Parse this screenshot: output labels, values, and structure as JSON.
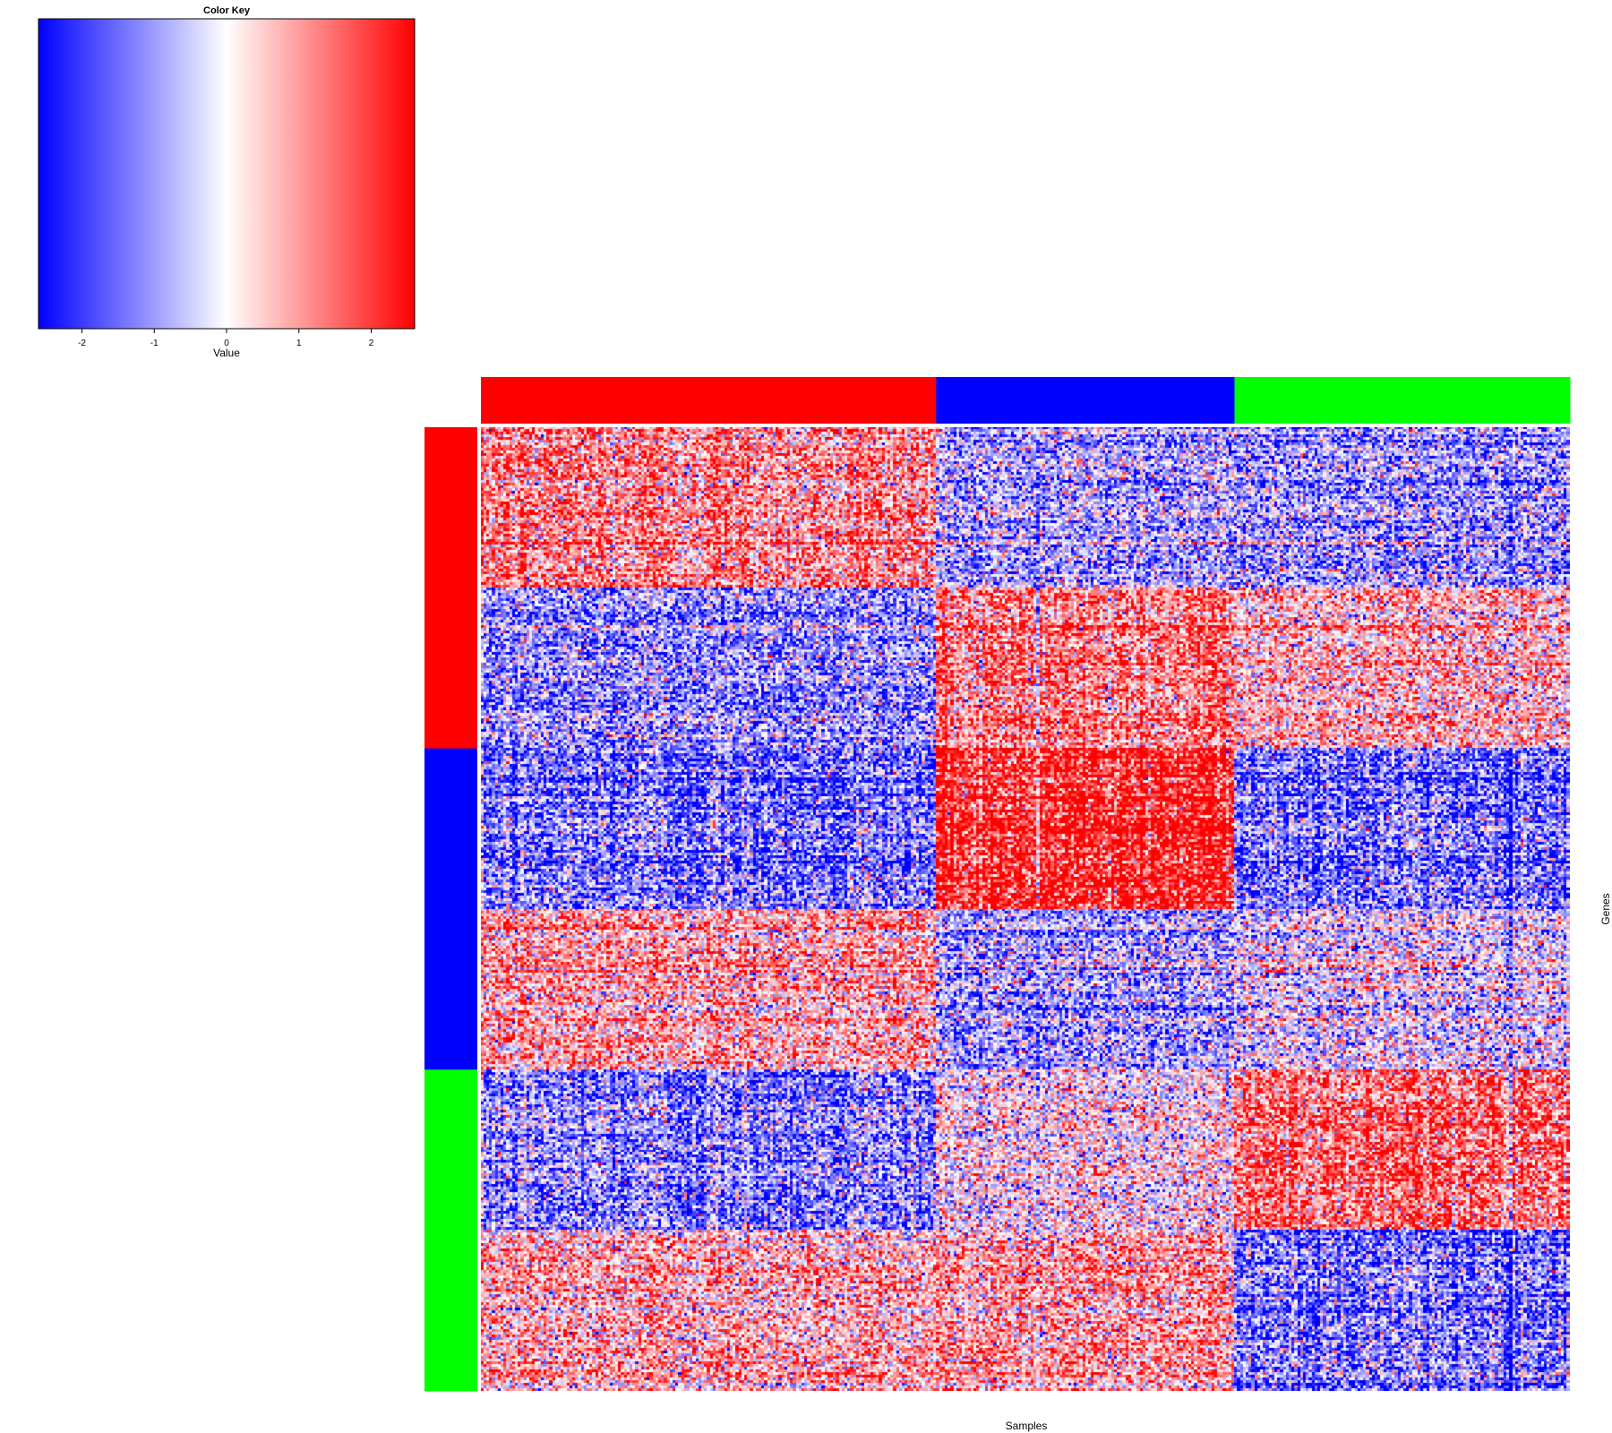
{
  "chart_data": {
    "type": "heatmap",
    "xlabel": "Samples",
    "ylabel": "Genes",
    "color_key": {
      "title": "Color Key",
      "xlabel": "Value",
      "range": [
        -2.6,
        2.6
      ],
      "ticks": [
        -2,
        -1,
        0,
        1,
        2
      ],
      "tick_labels": [
        "-2",
        "-1",
        "0",
        "1",
        "2"
      ],
      "colors": {
        "low": "#0000ff",
        "mid": "#ffffff",
        "high": "#ff0000"
      }
    },
    "column_groups": [
      {
        "color": "#ff0000",
        "fraction": 0.418
      },
      {
        "color": "#0000ff",
        "fraction": 0.274
      },
      {
        "color": "#00ff00",
        "fraction": 0.308
      }
    ],
    "row_groups": [
      {
        "color": "#ff0000",
        "fraction": 0.3333
      },
      {
        "color": "#0000ff",
        "fraction": 0.3333
      },
      {
        "color": "#00ff00",
        "fraction": 0.3334
      }
    ],
    "block_pattern": {
      "note_levels": "mean z-score per row-block (rows) x column-group (cols)",
      "row_blocks": [
        {
          "row_group": 0,
          "fraction": 0.5,
          "means": [
            1.0,
            -0.7,
            -0.8
          ]
        },
        {
          "row_group": 0,
          "fraction": 0.5,
          "means": [
            -0.9,
            1.1,
            0.6
          ]
        },
        {
          "row_group": 1,
          "fraction": 0.5,
          "means": [
            -1.1,
            2.0,
            -1.1
          ]
        },
        {
          "row_group": 1,
          "fraction": 0.5,
          "means": [
            0.7,
            -0.8,
            -0.2
          ]
        },
        {
          "row_group": 2,
          "fraction": 0.5,
          "means": [
            -1.0,
            0.1,
            1.3
          ]
        },
        {
          "row_group": 2,
          "fraction": 0.5,
          "means": [
            0.6,
            0.7,
            -1.1
          ]
        }
      ]
    }
  }
}
